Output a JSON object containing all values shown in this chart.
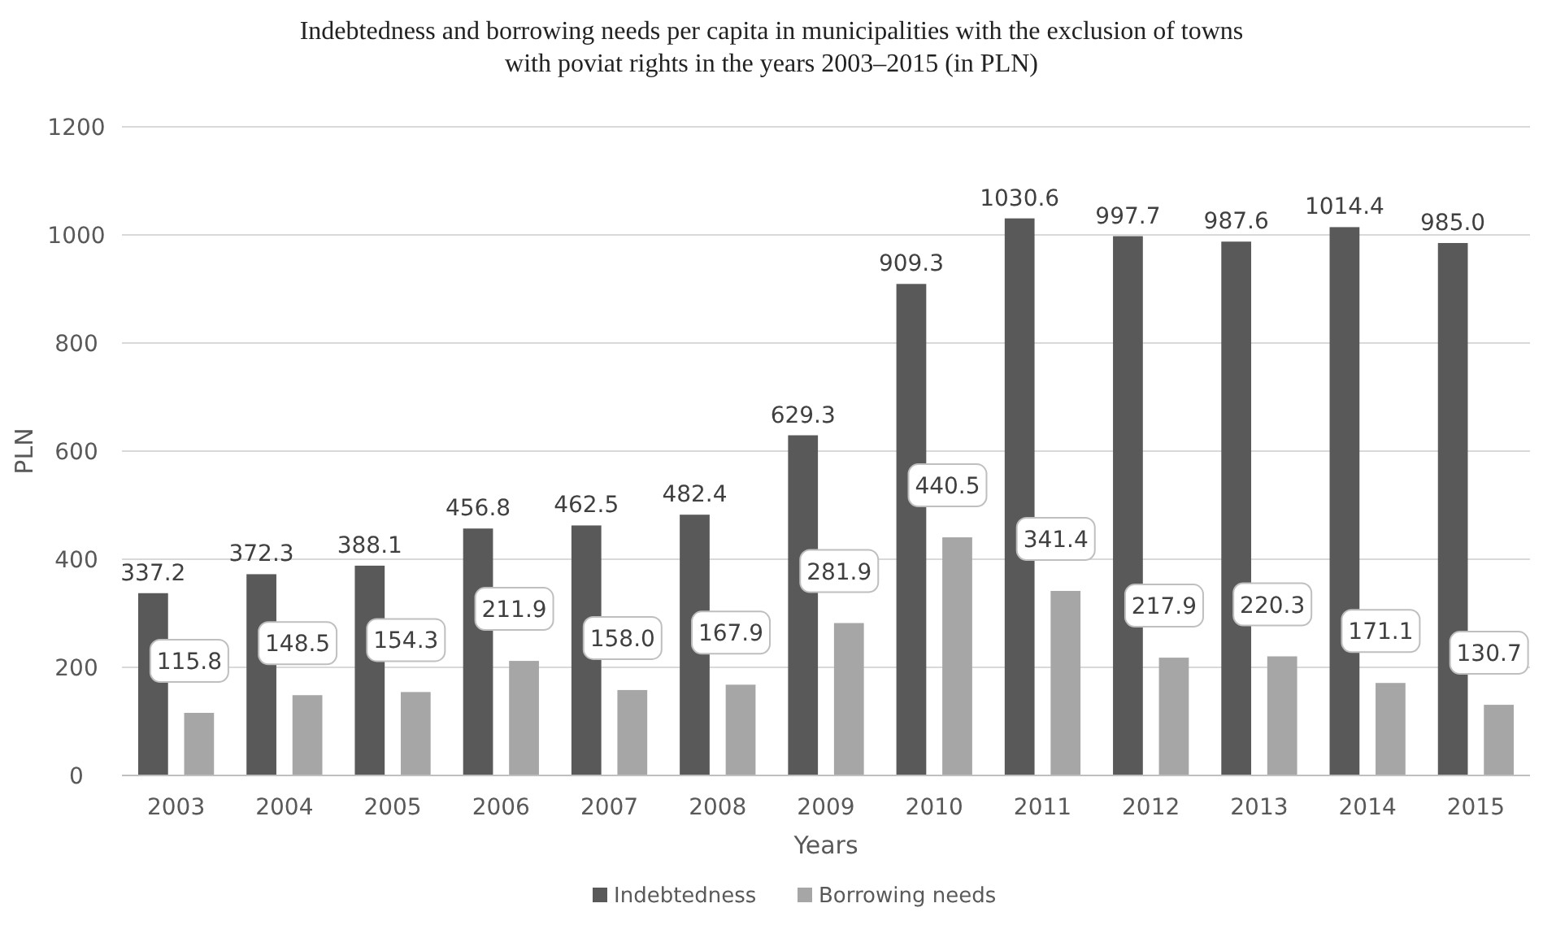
{
  "chart_data": {
    "type": "bar",
    "title": "Indebtedness and borrowing needs per capita in municipalities with the exclusion of towns with poviat rights in the years 2003–2015 (in PLN)",
    "xlabel": "Years",
    "ylabel": "PLN",
    "categories": [
      "2003",
      "2004",
      "2005",
      "2006",
      "2007",
      "2008",
      "2009",
      "2010",
      "2011",
      "2012",
      "2013",
      "2014",
      "2015"
    ],
    "series": [
      {
        "name": "Indebtedness",
        "color": "#595959",
        "values": [
          337.2,
          372.3,
          388.1,
          456.8,
          462.5,
          482.4,
          629.3,
          909.3,
          1030.6,
          997.7,
          987.6,
          1014.4,
          985.0
        ],
        "value_labels": [
          "337.2",
          "372.3",
          "388.1",
          "456.8",
          "462.5",
          "482.4",
          "629.3",
          "909.3",
          "1030.6",
          "997.7",
          "987.6",
          "1014.4",
          "985.0"
        ]
      },
      {
        "name": "Borrowing needs",
        "color": "#a6a6a6",
        "values": [
          115.8,
          148.5,
          154.3,
          211.9,
          158.0,
          167.9,
          281.9,
          440.5,
          341.4,
          217.9,
          220.3,
          171.1,
          130.7
        ],
        "value_labels": [
          "115.8",
          "148.5",
          "154.3",
          "211.9",
          "158.0",
          "167.9",
          "281.9",
          "440.5",
          "341.4",
          "217.9",
          "220.3",
          "171.1",
          "130.7"
        ]
      }
    ],
    "ylim": [
      0,
      1200
    ],
    "yticks": [
      0,
      200,
      400,
      600,
      800,
      1000,
      1200
    ],
    "grid": "y",
    "legend": "bottom",
    "data_labels": true
  }
}
